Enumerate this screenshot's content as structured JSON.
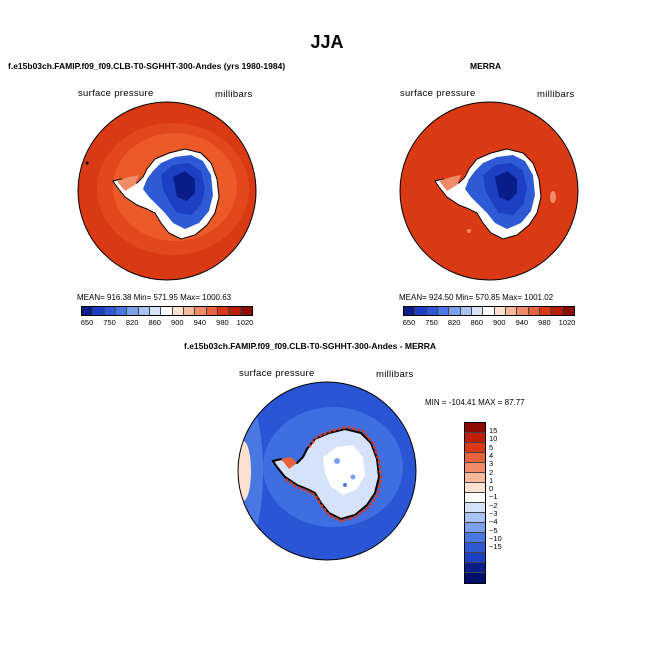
{
  "title": "JJA",
  "colors": {
    "ocean_pos": "#d93a14",
    "ocean_pos_light": "#ec5a2a",
    "ice_blue": "#1c3fc4",
    "ice_blue_dark": "#0a1e8a",
    "ice_blue_light": "#5a86e6",
    "diff_ocean": "#2a56d6",
    "diff_ocean_light": "#3f6ee0"
  },
  "panels": [
    {
      "title": "f.e15b03ch.FAMIP.f09_f09.CLB-T0-SGHHT-300-Andes (yrs 1980-1984)",
      "left_label": "surface pressure",
      "right_label": "millibars",
      "stats": "MEAN= 916.38   Min= 571.95   Max= 1000.63"
    },
    {
      "title": "MERRA",
      "left_label": "surface pressure",
      "right_label": "millibars",
      "stats": "MEAN= 924.50   Min= 570.85   Max= 1001.02"
    },
    {
      "title": "f.e15b03ch.FAMIP.f09_f09.CLB-T0-SGHHT-300-Andes - MERRA",
      "left_label": "surface pressure",
      "right_label": "millibars",
      "stats": "MIN = -104.41  MAX =  87.77"
    }
  ],
  "chart_data": [
    {
      "type": "heatmap",
      "title": "f.e15b03ch.FAMIP.f09_f09.CLB-T0-SGHHT-300-Andes (yrs 1980-1984)",
      "field": "surface pressure",
      "units": "millibars",
      "mean": 916.38,
      "min": 571.95,
      "max": 1000.63,
      "colorbar": {
        "labels": [
          "650",
          "750",
          "820",
          "860",
          "900",
          "940",
          "980",
          "1020"
        ],
        "colors": [
          "#0a1e8a",
          "#1c3fc4",
          "#2f5ad6",
          "#4a78e2",
          "#7aa0ee",
          "#a8c2f4",
          "#d6e2fa",
          "#ffffff",
          "#fde2d2",
          "#f8b99a",
          "#f08d68",
          "#e8623e",
          "#d93a14",
          "#b81e08",
          "#8c0a00"
        ]
      }
    },
    {
      "type": "heatmap",
      "title": "MERRA",
      "field": "surface pressure",
      "units": "millibars",
      "mean": 924.5,
      "min": 570.85,
      "max": 1001.02,
      "colorbar": {
        "labels": [
          "650",
          "750",
          "820",
          "860",
          "900",
          "940",
          "980",
          "1020"
        ],
        "colors": [
          "#0a1e8a",
          "#1c3fc4",
          "#2f5ad6",
          "#4a78e2",
          "#7aa0ee",
          "#a8c2f4",
          "#d6e2fa",
          "#ffffff",
          "#fde2d2",
          "#f8b99a",
          "#f08d68",
          "#e8623e",
          "#d93a14",
          "#b81e08",
          "#8c0a00"
        ]
      }
    },
    {
      "type": "heatmap",
      "title": "f.e15b03ch.FAMIP.f09_f09.CLB-T0-SGHHT-300-Andes - MERRA",
      "field": "surface pressure",
      "units": "millibars",
      "min": -104.41,
      "max": 87.77,
      "colorbar": {
        "labels": [
          "15",
          "10",
          "5",
          "4",
          "3",
          "2",
          "1",
          "0",
          "−1",
          "−2",
          "−3",
          "−4",
          "−5",
          "−10",
          "−15"
        ],
        "colors": [
          "#8c0a00",
          "#c01e0a",
          "#d93a14",
          "#e8623e",
          "#f08d68",
          "#f8b99a",
          "#fde2d2",
          "#ffffff",
          "#d6e2fa",
          "#a8c2f4",
          "#7aa0ee",
          "#4a78e2",
          "#2f5ad6",
          "#1c3fc4",
          "#0a1e8a",
          "#00106a"
        ]
      }
    }
  ]
}
